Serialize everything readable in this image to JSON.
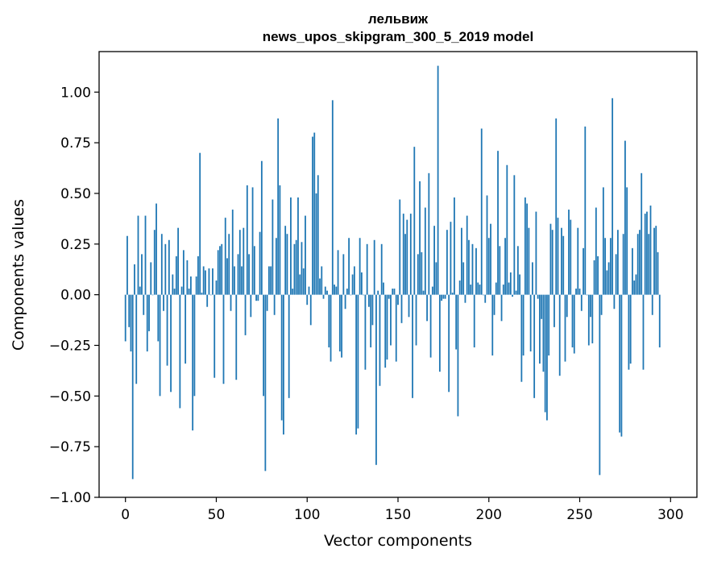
{
  "chart_data": {
    "type": "bar",
    "title": "лельвиж",
    "subtitle": "news_upos_skipgram_300_5_2019 model",
    "xlabel": "Vector components",
    "ylabel": "Components values",
    "xlim": [
      -14.5,
      314.5
    ],
    "ylim": [
      -1.0,
      1.2
    ],
    "xticks": [
      0,
      50,
      100,
      150,
      200,
      250,
      300
    ],
    "xtick_labels": [
      "0",
      "50",
      "100",
      "150",
      "200",
      "250",
      "300"
    ],
    "yticks": [
      -1.0,
      -0.75,
      -0.5,
      -0.25,
      0.0,
      0.25,
      0.5,
      0.75,
      1.0
    ],
    "ytick_labels": [
      "−1.00",
      "−0.75",
      "−0.50",
      "−0.25",
      "0.00",
      "0.25",
      "0.50",
      "0.75",
      "1.00"
    ],
    "bar_color": "#1f77b4",
    "values": [
      -0.23,
      0.29,
      -0.16,
      -0.28,
      -0.91,
      0.15,
      -0.44,
      0.39,
      0.04,
      0.2,
      -0.1,
      0.39,
      -0.28,
      -0.18,
      0.16,
      0.0,
      0.32,
      0.45,
      -0.23,
      -0.5,
      0.3,
      -0.08,
      0.25,
      -0.35,
      0.27,
      -0.48,
      0.1,
      0.03,
      0.19,
      0.33,
      -0.56,
      0.04,
      0.22,
      -0.34,
      0.17,
      0.03,
      0.09,
      -0.67,
      -0.5,
      0.09,
      0.19,
      0.7,
      0.01,
      0.14,
      0.12,
      -0.06,
      0.13,
      0.0,
      0.13,
      -0.41,
      0.07,
      0.22,
      0.24,
      0.25,
      -0.44,
      0.38,
      0.18,
      0.3,
      -0.08,
      0.42,
      0.14,
      -0.42,
      0.2,
      0.32,
      0.14,
      0.33,
      -0.2,
      0.54,
      0.2,
      -0.11,
      0.53,
      0.24,
      -0.03,
      -0.03,
      0.31,
      0.66,
      -0.5,
      -0.87,
      -0.08,
      0.14,
      0.14,
      0.47,
      -0.1,
      0.28,
      0.87,
      0.54,
      -0.62,
      -0.69,
      0.34,
      0.3,
      -0.51,
      0.48,
      0.03,
      0.25,
      0.27,
      0.48,
      0.1,
      0.26,
      0.13,
      0.39,
      -0.05,
      0.04,
      -0.15,
      0.78,
      0.8,
      0.5,
      0.59,
      0.08,
      0.14,
      -0.02,
      0.04,
      0.02,
      -0.26,
      -0.33,
      0.96,
      0.05,
      0.04,
      0.22,
      -0.28,
      -0.31,
      0.2,
      -0.07,
      0.03,
      0.28,
      0.0,
      0.1,
      0.14,
      -0.69,
      -0.66,
      0.28,
      0.11,
      0.0,
      -0.37,
      0.25,
      -0.06,
      -0.26,
      -0.15,
      0.27,
      -0.84,
      0.02,
      -0.45,
      0.25,
      0.06,
      -0.36,
      -0.32,
      -0.02,
      -0.25,
      0.03,
      0.03,
      -0.33,
      -0.05,
      0.47,
      -0.14,
      0.4,
      0.3,
      0.37,
      -0.11,
      0.4,
      -0.51,
      0.73,
      -0.25,
      0.2,
      0.56,
      0.21,
      0.02,
      0.43,
      -0.13,
      0.6,
      -0.31,
      0.04,
      0.34,
      0.16,
      1.13,
      -0.38,
      -0.03,
      -0.02,
      -0.02,
      0.32,
      -0.48,
      0.36,
      0.01,
      0.48,
      -0.27,
      -0.6,
      0.07,
      0.33,
      0.16,
      -0.04,
      0.39,
      0.27,
      0.05,
      0.25,
      -0.26,
      0.23,
      0.06,
      0.05,
      0.82,
      0.0,
      -0.04,
      0.49,
      0.28,
      0.35,
      -0.3,
      -0.1,
      0.06,
      0.71,
      0.24,
      -0.13,
      0.05,
      0.28,
      0.64,
      0.06,
      0.11,
      -0.01,
      0.59,
      0.02,
      0.24,
      0.1,
      -0.43,
      -0.3,
      0.48,
      0.45,
      0.33,
      -0.28,
      0.16,
      -0.51,
      0.41,
      -0.02,
      -0.34,
      -0.12,
      -0.38,
      -0.58,
      -0.62,
      -0.3,
      0.35,
      0.32,
      -0.16,
      0.87,
      0.38,
      -0.4,
      0.33,
      0.29,
      -0.33,
      -0.11,
      0.42,
      0.37,
      -0.26,
      -0.29,
      0.03,
      0.33,
      0.03,
      -0.08,
      0.23,
      0.83,
      0.0,
      -0.25,
      -0.11,
      -0.24,
      0.17,
      0.43,
      0.19,
      -0.89,
      -0.1,
      0.53,
      0.28,
      0.12,
      0.16,
      0.28,
      0.97,
      -0.07,
      0.2,
      0.32,
      -0.68,
      -0.7,
      0.3,
      0.76,
      0.53,
      -0.37,
      -0.34,
      0.23,
      0.07,
      0.1,
      0.3,
      0.32,
      0.6,
      -0.37,
      0.4,
      0.41,
      0.3,
      0.44,
      -0.1,
      0.33,
      0.34,
      0.21,
      -0.26
    ]
  }
}
